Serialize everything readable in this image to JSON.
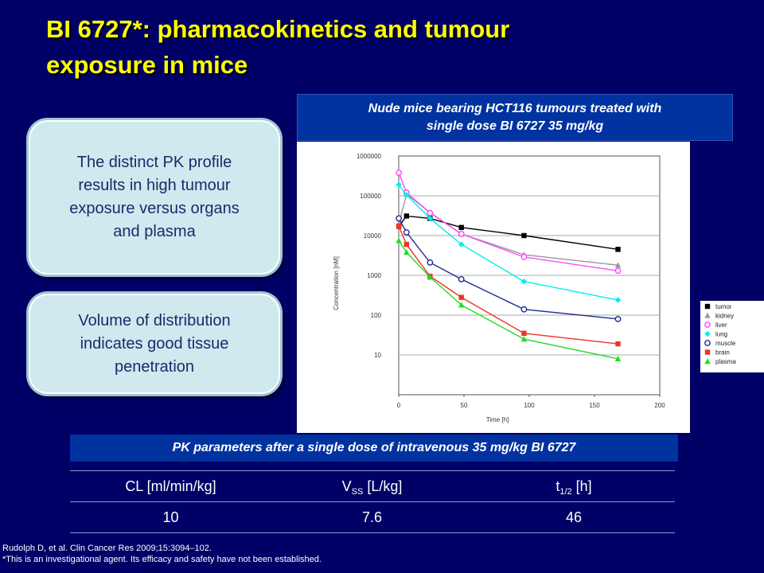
{
  "slide": {
    "title_lines": [
      "BI 6727*: pharmacokinetics and tumour",
      "exposure in mice"
    ],
    "box1_lines": [
      "The distinct PK profile",
      "results in high tumour",
      "exposure versus organs",
      "and plasma"
    ],
    "box2_lines": [
      "Volume of distribution",
      "indicates good tissue",
      "penetration"
    ],
    "chart_caption_lines": [
      "Nude mice bearing HCT116 tumours treated with",
      "single dose  BI 6727 35 mg/kg"
    ],
    "pk_header": "PK parameters after a single dose of intravenous 35 mg/kg BI 6727",
    "pk_table": {
      "col1": {
        "main": "CL [ml/min/kg]",
        "value": "10"
      },
      "col2": {
        "pre": "V",
        "sub": "SS",
        "post": " [L/kg]",
        "value": "7.6"
      },
      "col3": {
        "pre": "t",
        "sub": "1/2",
        "post": " [h]",
        "value": "46"
      }
    },
    "footnote_lines": [
      "Rudolph D, et al. Clin Cancer Res 2009;15:3094–102.",
      "*This is an investigational agent. Its efficacy and safety have not been established."
    ]
  },
  "chart_data": {
    "type": "line",
    "y_scale": "log",
    "ylim": [
      1,
      1000000
    ],
    "xlim": [
      0,
      200
    ],
    "x_ticks": [
      0,
      50,
      100,
      150,
      200
    ],
    "y_ticks": [
      10,
      100,
      1000,
      10000,
      100000,
      1000000
    ],
    "y_tick_labels": [
      "10",
      "100",
      "1000",
      "10000",
      "100000",
      "1000000"
    ],
    "xlabel": "Time [h]",
    "ylabel": "Concentration [nM]",
    "grid": "horizontal",
    "legend_position": "right",
    "x": [
      0.083,
      6,
      24,
      48,
      96,
      168
    ],
    "series": [
      {
        "name": "tumor",
        "color": "#000000",
        "marker": "square",
        "values": [
          17000,
          31000,
          27000,
          16000,
          10000,
          4500
        ]
      },
      {
        "name": "kidney",
        "color": "#999999",
        "marker": "triangle",
        "values": [
          20000,
          110000,
          38000,
          11000,
          3300,
          1800
        ]
      },
      {
        "name": "liver",
        "color": "#ff44ff",
        "marker": "circle-open",
        "values": [
          380000,
          120000,
          37000,
          11000,
          2900,
          1300
        ]
      },
      {
        "name": "lung",
        "color": "#00eeee",
        "marker": "diamond",
        "values": [
          190000,
          105000,
          27000,
          6000,
          700,
          240
        ]
      },
      {
        "name": "muscle",
        "color": "#1a2a8c",
        "marker": "circle-open",
        "values": [
          27000,
          12000,
          2100,
          800,
          140,
          80
        ]
      },
      {
        "name": "brain",
        "color": "#ee3322",
        "marker": "square",
        "values": [
          17000,
          6000,
          950,
          280,
          35,
          19
        ]
      },
      {
        "name": "plasma",
        "color": "#22dd22",
        "marker": "triangle",
        "values": [
          7500,
          3800,
          900,
          180,
          25,
          8
        ]
      }
    ]
  }
}
